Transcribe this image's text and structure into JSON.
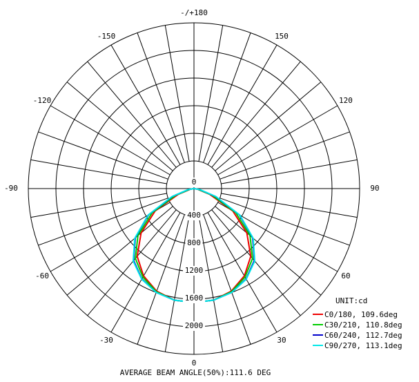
{
  "chart_data": {
    "type": "polar-line",
    "unit_label": "UNIT:cd",
    "radial_ticks": [
      0,
      400,
      800,
      1200,
      1600,
      2000
    ],
    "radial_max": 2400,
    "angle_ticks": [
      {
        "angle": 180,
        "label": "-/+180"
      },
      {
        "angle": 150,
        "label": "150"
      },
      {
        "angle": 120,
        "label": "120"
      },
      {
        "angle": 90,
        "label": "90"
      },
      {
        "angle": 60,
        "label": "60"
      },
      {
        "angle": 30,
        "label": "30"
      },
      {
        "angle": 0,
        "label": "0"
      },
      {
        "angle": -30,
        "label": "-30"
      },
      {
        "angle": -60,
        "label": "-60"
      },
      {
        "angle": -90,
        "label": "-90"
      },
      {
        "angle": -120,
        "label": "-120"
      },
      {
        "angle": -150,
        "label": "-150"
      }
    ],
    "spoke_step_deg": 10,
    "footer": "AVERAGE BEAM ANGLE(50%):111.6 DEG",
    "series": [
      {
        "name": "C0/180, 109.6deg",
        "color": "#ee0000",
        "theta": [
          -90,
          -80,
          -70,
          -60,
          -50,
          -40,
          -30,
          -20,
          -10,
          0,
          10,
          20,
          30,
          40,
          50,
          60,
          70,
          80,
          90
        ],
        "values": [
          0,
          50,
          240,
          650,
          1000,
          1280,
          1460,
          1580,
          1640,
          1650,
          1640,
          1580,
          1460,
          1280,
          1000,
          650,
          240,
          50,
          0
        ]
      },
      {
        "name": "C30/210, 110.8deg",
        "color": "#00cc00",
        "theta": [
          -90,
          -80,
          -70,
          -60,
          -50,
          -40,
          -30,
          -20,
          -10,
          0,
          10,
          20,
          30,
          40,
          50,
          60,
          70,
          80,
          90
        ],
        "values": [
          0,
          60,
          280,
          700,
          1060,
          1320,
          1480,
          1590,
          1640,
          1650,
          1640,
          1590,
          1480,
          1320,
          1060,
          700,
          280,
          60,
          0
        ]
      },
      {
        "name": "C60/240, 112.7deg",
        "color": "#0000cc",
        "theta": [
          -90,
          -80,
          -70,
          -60,
          -50,
          -40,
          -30,
          -20,
          -10,
          0,
          10,
          20,
          30,
          40,
          50,
          60,
          70,
          80,
          90
        ],
        "values": [
          0,
          80,
          330,
          760,
          1110,
          1360,
          1510,
          1600,
          1640,
          1650,
          1640,
          1600,
          1510,
          1360,
          1110,
          760,
          330,
          80,
          0
        ]
      },
      {
        "name": "C90/270, 113.1deg",
        "color": "#00e8e8",
        "theta": [
          -90,
          -80,
          -70,
          -60,
          -50,
          -40,
          -30,
          -20,
          -10,
          0,
          10,
          20,
          30,
          40,
          50,
          60,
          70,
          80,
          90
        ],
        "values": [
          0,
          90,
          340,
          770,
          1120,
          1370,
          1515,
          1600,
          1640,
          1650,
          1640,
          1600,
          1515,
          1370,
          1120,
          770,
          340,
          90,
          0
        ]
      }
    ]
  }
}
